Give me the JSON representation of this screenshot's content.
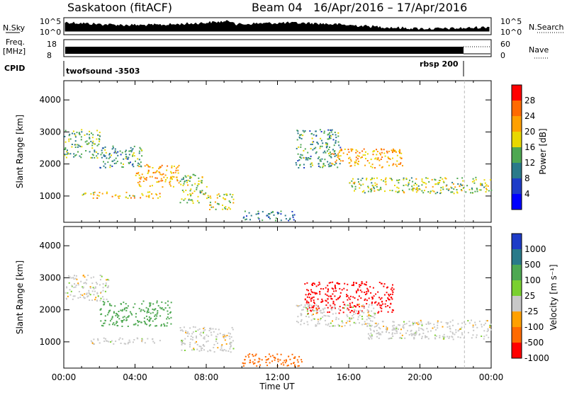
{
  "header": {
    "station": "Saskatoon (fitACF)",
    "beam": "Beam 04",
    "dates": "16/Apr/2016 – 17/Apr/2016"
  },
  "panels": {
    "nsky_label": "N.Sky",
    "nsky_ticks": [
      "10^5",
      "10^0"
    ],
    "nsearch_label": "N.Search",
    "nsearch_ticks": [
      "10^5",
      "10^0"
    ],
    "freq_label_1": "Freq.",
    "freq_label_2": "[MHz]",
    "freq_ticks": [
      "18",
      "8"
    ],
    "nave_label": "Nave",
    "nave_ticks": [
      "60",
      "0"
    ],
    "cpid_label": "CPID",
    "cpid_mode_1": "twofsound -3503",
    "cpid_mode_2": "rbsp 200"
  },
  "chart_data": [
    {
      "type": "heatmap",
      "title": "Power",
      "xlabel": "Time UT",
      "ylabel": "Slant Range [km]",
      "ylim": [
        180,
        4600
      ],
      "xlim": [
        0,
        24
      ],
      "x_ticks": [
        "00:00",
        "04:00",
        "08:00",
        "12:00",
        "16:00",
        "20:00",
        "00:00"
      ],
      "y_ticks": [
        "1000",
        "2000",
        "3000",
        "4000"
      ],
      "colorbar_label": "Power [dB]",
      "colorbar_ticks": [
        "28",
        "24",
        "20",
        "16",
        "12",
        "8",
        "4"
      ],
      "colorbar_colors": [
        "#ff0000",
        "#ff6a00",
        "#ffa000",
        "#e8d800",
        "#4ea852",
        "#2a7a8a",
        "#1e3cc8",
        "#0000ff"
      ],
      "scatter_regions": [
        {
          "t": [
            0.0,
            2.0
          ],
          "r": [
            2200,
            3100
          ],
          "value": 14
        },
        {
          "t": [
            2.0,
            4.5
          ],
          "r": [
            1900,
            2600
          ],
          "value": 12
        },
        {
          "t": [
            4.0,
            6.5
          ],
          "r": [
            1300,
            2000
          ],
          "value": 22
        },
        {
          "t": [
            1.0,
            5.5
          ],
          "r": [
            950,
            1150
          ],
          "value": 20
        },
        {
          "t": [
            6.5,
            8.0
          ],
          "r": [
            800,
            1700
          ],
          "value": 16
        },
        {
          "t": [
            8.0,
            9.5
          ],
          "r": [
            600,
            1100
          ],
          "value": 18
        },
        {
          "t": [
            10.0,
            13.0
          ],
          "r": [
            250,
            550
          ],
          "value": 10
        },
        {
          "t": [
            13.0,
            15.5
          ],
          "r": [
            1900,
            3100
          ],
          "value": 12
        },
        {
          "t": [
            15.0,
            19.0
          ],
          "r": [
            1900,
            2500
          ],
          "value": 22
        },
        {
          "t": [
            16.0,
            24.0
          ],
          "r": [
            1100,
            1600
          ],
          "value": 16
        }
      ]
    },
    {
      "type": "heatmap",
      "title": "Velocity",
      "xlabel": "Time UT",
      "ylabel": "Slant Range [km]",
      "ylim": [
        180,
        4600
      ],
      "xlim": [
        0,
        24
      ],
      "x_ticks": [
        "00:00",
        "04:00",
        "08:00",
        "12:00",
        "16:00",
        "20:00",
        "00:00"
      ],
      "y_ticks": [
        "1000",
        "2000",
        "3000",
        "4000"
      ],
      "colorbar_label": "Velocity [m s⁻¹]",
      "colorbar_ticks": [
        "1000",
        "500",
        "100",
        "25",
        "-25",
        "-100",
        "-500",
        "-1000"
      ],
      "colorbar_colors": [
        "#1e3cc8",
        "#2a7a8a",
        "#4ea852",
        "#7ad030",
        "#c8c8c8",
        "#ffa000",
        "#ff6a00",
        "#ff0000"
      ],
      "scatter_regions": [
        {
          "t": [
            0.0,
            2.5
          ],
          "r": [
            2300,
            3100
          ],
          "value": 0
        },
        {
          "t": [
            2.0,
            6.0
          ],
          "r": [
            1500,
            2300
          ],
          "value": 150
        },
        {
          "t": [
            1.5,
            5.5
          ],
          "r": [
            950,
            1150
          ],
          "value": 0
        },
        {
          "t": [
            6.5,
            9.5
          ],
          "r": [
            700,
            1500
          ],
          "value": 0
        },
        {
          "t": [
            10.0,
            13.5
          ],
          "r": [
            250,
            650
          ],
          "value": -150
        },
        {
          "t": [
            13.5,
            18.5
          ],
          "r": [
            1900,
            2900
          ],
          "value": -600
        },
        {
          "t": [
            13.0,
            17.5
          ],
          "r": [
            1500,
            2200
          ],
          "value": 0
        },
        {
          "t": [
            17.0,
            24.0
          ],
          "r": [
            1100,
            1700
          ],
          "value": 0
        }
      ]
    }
  ]
}
